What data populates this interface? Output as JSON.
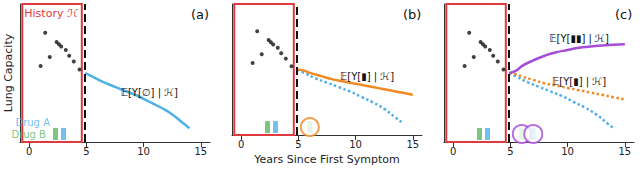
{
  "chart_data": [
    {
      "type": "line",
      "title": "(a)",
      "ylabel": "Lung Capacity",
      "history_label": "History ℋ",
      "history": [
        -0.6,
        4.6
      ],
      "now": 4.9,
      "xlim": [
        -0.8,
        15.8
      ],
      "xticks": [
        0,
        5,
        10,
        15
      ],
      "ylim": [
        0,
        120
      ],
      "yticks": [],
      "tick_labels": "x",
      "observations": {
        "color": "#111111",
        "x": [
          1.0,
          1.4,
          1.8,
          2.4,
          2.6,
          2.8,
          3.2,
          3.5,
          3.9,
          4.4
        ],
        "values": [
          66,
          95,
          74,
          87,
          85,
          83,
          80,
          75,
          70,
          63
        ]
      },
      "treatments": [
        {
          "name": "Drug A",
          "color": "#4fb0e8",
          "x": [
            3.0
          ]
        },
        {
          "name": "Drug B",
          "color": "#5cb85c",
          "x": [
            2.3
          ]
        }
      ],
      "series": [
        {
          "name": "𝔼[Y[∅] | ℋ]",
          "color": "#4fb0e8",
          "line_style": "solid",
          "x": [
            4.9,
            5.5,
            6.5,
            7.5,
            8.5,
            9.5,
            10.5,
            11.5,
            12.5,
            13.5,
            14.0
          ],
          "values": [
            60,
            57,
            52,
            48,
            44,
            40,
            35,
            30,
            24,
            16,
            12
          ]
        }
      ]
    },
    {
      "type": "line",
      "title": "(b)",
      "xlabel": "Years Since First Symptom",
      "history": [
        -0.6,
        4.6
      ],
      "now": 4.9,
      "xlim": [
        -0.8,
        15.8
      ],
      "xticks": [
        0,
        5,
        10,
        15
      ],
      "ylim": [
        0,
        120
      ],
      "yticks": [],
      "tick_labels": "x",
      "observations": {
        "color": "#111111",
        "x": [
          1.0,
          1.4,
          1.8,
          2.4,
          2.6,
          2.8,
          3.2,
          3.5,
          3.9,
          4.4
        ],
        "values": [
          66,
          95,
          74,
          87,
          85,
          83,
          80,
          75,
          70,
          63
        ]
      },
      "treatments": [
        {
          "color": "#4fb0e8",
          "x": [
            3.0
          ]
        },
        {
          "color": "#5cb85c",
          "x": [
            2.3
          ]
        }
      ],
      "series": [
        {
          "color": "#4fb0e8",
          "line_style": "dotted",
          "x": [
            4.9,
            5.5,
            6.5,
            7.5,
            8.5,
            9.5,
            10.5,
            11.5,
            12.5,
            13.5,
            14.0
          ],
          "values": [
            60,
            57,
            52,
            48,
            44,
            40,
            35,
            30,
            24,
            16,
            12
          ]
        },
        {
          "name": "𝔼[Y[▮] | ℋ]",
          "color": "#f08a24",
          "line_style": "solid",
          "treatments": [
            {
              "color": "#5cb85c",
              "x": [
                6.0
              ]
            }
          ],
          "x": [
            4.9,
            5.5,
            6.0,
            7.0,
            8.0,
            9.0,
            10.0,
            11.0,
            12.0,
            13.0,
            14.0,
            15.0
          ],
          "values": [
            60,
            59,
            57,
            54,
            51,
            49,
            47,
            45,
            43,
            41,
            39,
            37
          ]
        }
      ]
    },
    {
      "type": "line",
      "title": "(c)",
      "history": [
        -0.6,
        4.6
      ],
      "now": 4.9,
      "xlim": [
        -0.8,
        15.8
      ],
      "xticks": [
        0,
        5,
        10,
        15
      ],
      "ylim": [
        0,
        120
      ],
      "yticks": [],
      "tick_labels": "x",
      "observations": {
        "color": "#111111",
        "x": [
          1.0,
          1.4,
          1.8,
          2.4,
          2.6,
          2.8,
          3.2,
          3.5,
          3.9,
          4.4
        ],
        "values": [
          66,
          95,
          74,
          87,
          85,
          83,
          80,
          75,
          70,
          63
        ]
      },
      "treatments": [
        {
          "color": "#4fb0e8",
          "x": [
            3.0
          ]
        },
        {
          "color": "#5cb85c",
          "x": [
            2.3
          ]
        }
      ],
      "series": [
        {
          "color": "#4fb0e8",
          "line_style": "dotted",
          "x": [
            4.9,
            5.5,
            6.5,
            7.5,
            8.5,
            9.5,
            10.5,
            11.5,
            12.5,
            13.5,
            14.0
          ],
          "values": [
            60,
            57,
            52,
            48,
            44,
            40,
            35,
            30,
            24,
            16,
            12
          ]
        },
        {
          "name": "𝔼[Y[▮] | ℋ]",
          "color": "#f08a24",
          "line_style": "dotted",
          "x": [
            4.9,
            5.5,
            6.0,
            7.0,
            8.0,
            9.0,
            10.0,
            11.0,
            12.0,
            13.0,
            14.0,
            15.0
          ],
          "values": [
            60,
            59,
            57,
            54,
            51,
            49,
            47,
            45,
            43,
            41,
            39,
            37
          ]
        },
        {
          "name": "𝔼[Y[▮▮] | ℋ]",
          "color": "#a64dd8",
          "line_style": "solid",
          "treatments": [
            {
              "color": "#5cb85c",
              "x": [
                6.0
              ]
            },
            {
              "color": "#4fb0e8",
              "x": [
                7.0
              ]
            }
          ],
          "x": [
            4.9,
            5.5,
            6.0,
            7.0,
            8.0,
            9.0,
            10.0,
            11.0,
            12.0,
            13.0,
            14.0,
            15.0
          ],
          "values": [
            60,
            62,
            66,
            71,
            75,
            78,
            80,
            82,
            83,
            84,
            84.5,
            85
          ]
        }
      ]
    }
  ]
}
